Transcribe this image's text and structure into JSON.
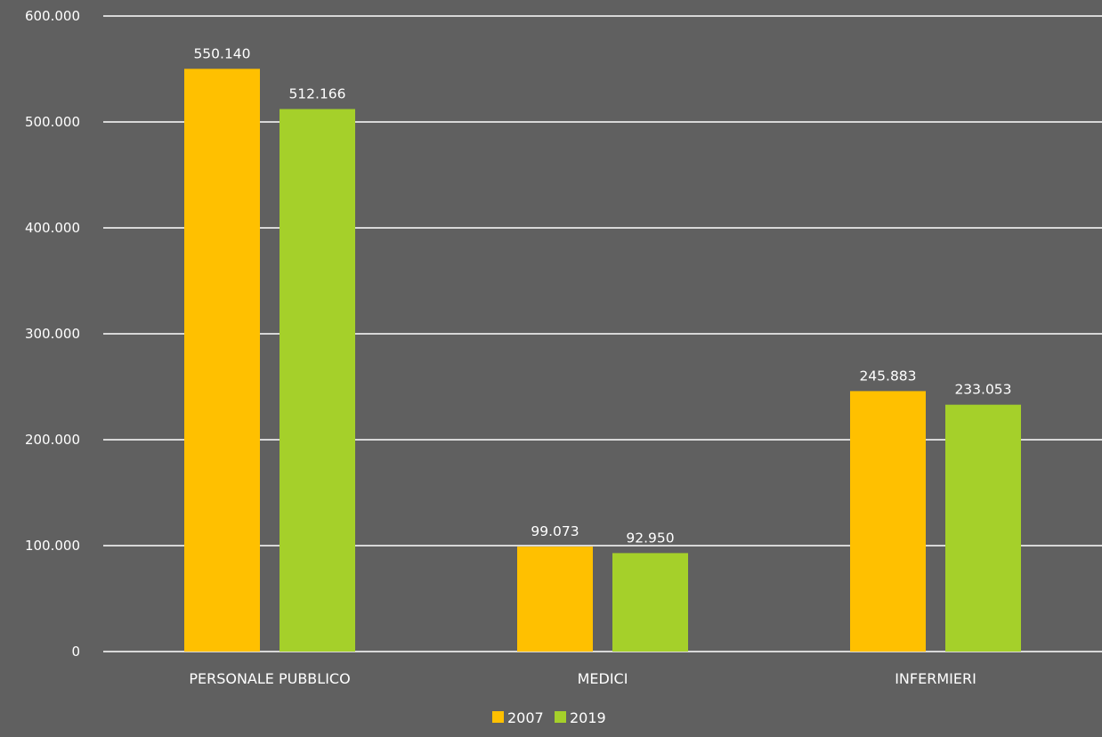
{
  "chart_data": {
    "type": "bar",
    "categories": [
      "PERSONALE PUBBLICO",
      "MEDICI",
      "INFERMIERI"
    ],
    "series": [
      {
        "name": "2007",
        "values": [
          550140,
          99073,
          245883
        ],
        "labels": [
          "550.140",
          "99.073",
          "245.883"
        ],
        "color": "#FFC000"
      },
      {
        "name": "2019",
        "values": [
          512166,
          92950,
          233053
        ],
        "labels": [
          "512.166",
          "92.950",
          "233.053"
        ],
        "color": "#A5D02A"
      }
    ],
    "title": "",
    "xlabel": "",
    "ylabel": "",
    "ylim": [
      0,
      600000
    ],
    "yticks": [
      {
        "value": 0,
        "label": "0"
      },
      {
        "value": 100000,
        "label": "100.000"
      },
      {
        "value": 200000,
        "label": "200.000"
      },
      {
        "value": 300000,
        "label": "300.000"
      },
      {
        "value": 400000,
        "label": "400.000"
      },
      {
        "value": 500000,
        "label": "500.000"
      },
      {
        "value": 600000,
        "label": "600.000"
      }
    ],
    "grid": true,
    "legend_position": "bottom-center",
    "background_color": "#606060",
    "gridline_color": "#FFFFFF",
    "text_color": "#FFFFFF"
  }
}
